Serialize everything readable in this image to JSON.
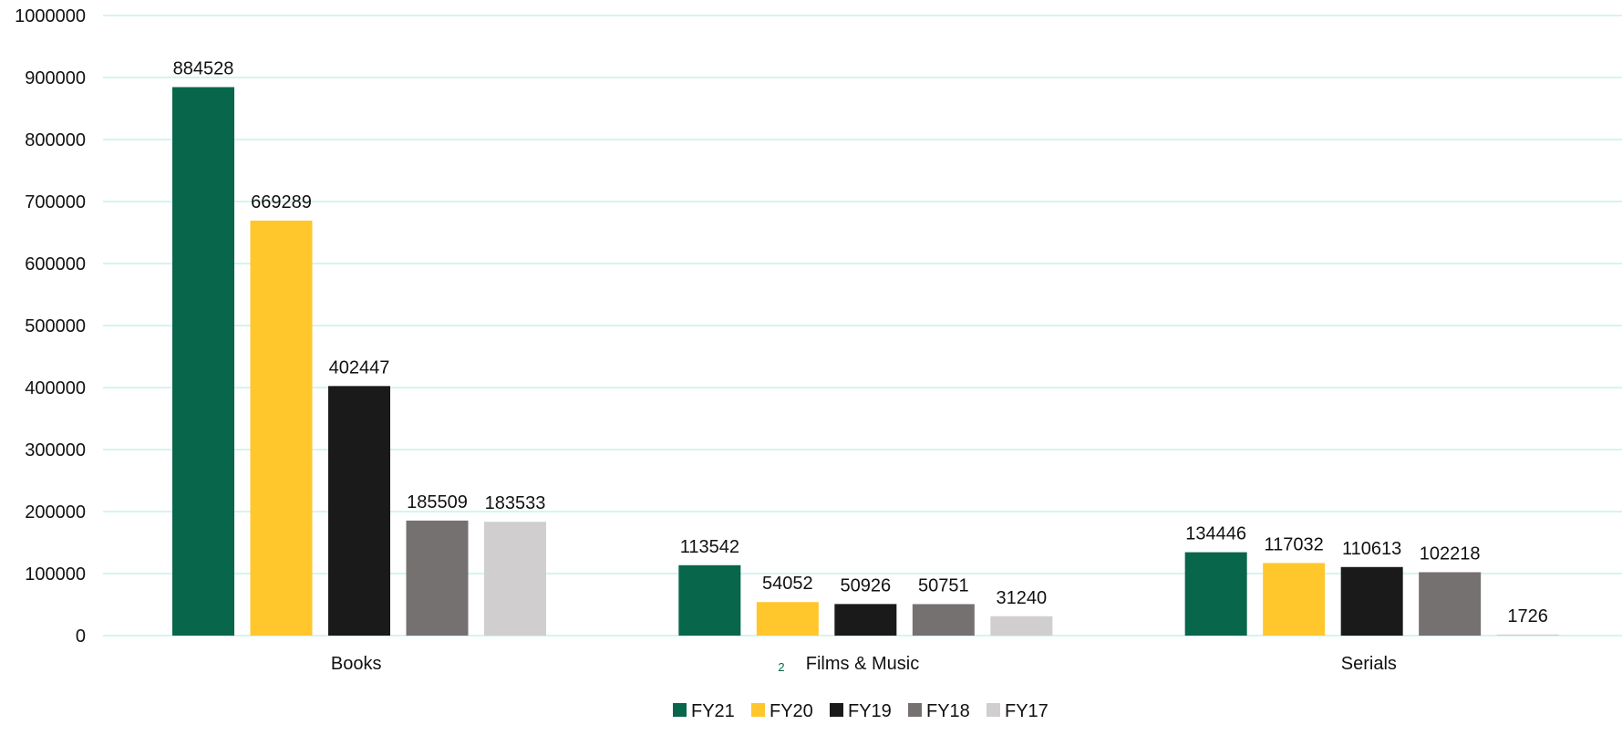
{
  "chart_data": {
    "type": "bar",
    "categories": [
      "Books",
      "Films & Music",
      "Serials"
    ],
    "series": [
      {
        "name": "FY21",
        "color": "#08664A",
        "values": [
          884528,
          113542,
          134446
        ]
      },
      {
        "name": "FY20",
        "color": "#FFC72C",
        "values": [
          669289,
          54052,
          117032
        ]
      },
      {
        "name": "FY19",
        "color": "#1A1A1A",
        "values": [
          402447,
          50926,
          110613
        ]
      },
      {
        "name": "FY18",
        "color": "#757170",
        "values": [
          185509,
          50751,
          102218
        ]
      },
      {
        "name": "FY17",
        "color": "#D0CECE",
        "values": [
          183533,
          31240,
          1726
        ]
      }
    ],
    "ylim": [
      0,
      1000000
    ],
    "yticks": [
      "0",
      "100000",
      "200000",
      "300000",
      "400000",
      "500000",
      "600000",
      "700000",
      "800000",
      "900000",
      "1000000"
    ],
    "grid": true,
    "gridline_color": "#C5F2EA",
    "legend_position": "bottom",
    "annotations": [
      "2"
    ],
    "annotation_color": "#08664A"
  }
}
